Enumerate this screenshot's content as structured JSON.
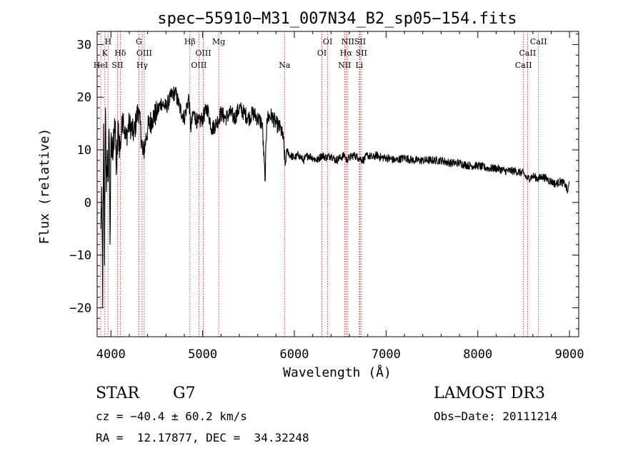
{
  "chart_data": {
    "type": "line",
    "title": "spec−55910−M31_007N34_B2_sp05−154.fits",
    "xlabel": "Wavelength (Å)",
    "ylabel": "Flux (relative)",
    "xlim": [
      3850,
      9100
    ],
    "ylim": [
      -25.5,
      32.5
    ],
    "xticks": [
      4000,
      5000,
      6000,
      7000,
      8000,
      9000
    ],
    "xtick_labels": [
      "4000",
      "5000",
      "6000",
      "7000",
      "8000",
      "9000"
    ],
    "yticks": [
      -20,
      -10,
      0,
      10,
      20,
      30
    ],
    "ytick_labels": [
      "−20",
      "−10",
      "0",
      "10",
      "20",
      "30"
    ],
    "x_minor_step": 200,
    "y_minor_step": 2,
    "line_color": "#000000",
    "marker_color": "#cc2222",
    "series": [
      {
        "name": "flux",
        "x": [
          3890,
          3900,
          3910,
          3920,
          3930,
          3940,
          3950,
          3960,
          3970,
          3980,
          3990,
          4000,
          4020,
          4040,
          4060,
          4080,
          4100,
          4130,
          4160,
          4200,
          4250,
          4300,
          4350,
          4380,
          4400,
          4450,
          4500,
          4550,
          4600,
          4650,
          4700,
          4750,
          4800,
          4850,
          4870,
          4900,
          4950,
          5000,
          5050,
          5100,
          5150,
          5200,
          5250,
          5300,
          5350,
          5400,
          5450,
          5500,
          5550,
          5600,
          5650,
          5680,
          5700,
          5750,
          5800,
          5850,
          5880,
          5900,
          5920,
          5950,
          6000,
          6050,
          6100,
          6150,
          6200,
          6250,
          6300,
          6350,
          6400,
          6450,
          6500,
          6550,
          6563,
          6600,
          6650,
          6700,
          6750,
          6800,
          6850,
          6900,
          6950,
          7000,
          7100,
          7200,
          7300,
          7400,
          7500,
          7600,
          7700,
          7800,
          7900,
          8000,
          8100,
          8200,
          8300,
          8400,
          8500,
          8540,
          8600,
          8662,
          8700,
          8750,
          8800,
          8850,
          8900,
          8950,
          8980,
          9000
        ],
        "y": [
          -5,
          3,
          -20,
          15,
          -12,
          18,
          2,
          10,
          4,
          14,
          -8,
          12,
          8,
          16,
          6,
          14,
          10,
          17,
          12,
          15,
          13,
          18,
          9,
          12,
          14,
          16,
          17,
          19,
          18,
          20,
          21,
          18,
          16,
          20,
          14,
          17,
          15,
          16,
          18,
          14,
          15,
          17,
          16,
          17,
          16,
          18,
          17,
          16,
          17,
          16,
          15,
          4,
          16,
          16.5,
          15,
          14,
          12,
          7,
          10,
          9,
          8.5,
          9,
          8,
          9,
          8.5,
          8,
          9,
          8.5,
          9,
          8,
          8.5,
          9,
          8,
          8.5,
          9,
          8.5,
          8,
          9,
          8.5,
          9,
          8.5,
          8.5,
          8,
          8.5,
          8,
          8,
          8,
          8,
          7.5,
          7.5,
          7,
          7,
          6.5,
          6.5,
          6,
          6,
          5.5,
          4.5,
          5,
          4.5,
          5,
          4.5,
          4,
          3.5,
          4,
          3.5,
          2,
          4
        ]
      }
    ],
    "line_markers": [
      {
        "x": 3889,
        "label": "HeI",
        "row": 3
      },
      {
        "x": 3934,
        "label": "K",
        "row": 2
      },
      {
        "x": 3969,
        "label": "H",
        "row": 1
      },
      {
        "x": 4072,
        "label": "SII",
        "row": 3
      },
      {
        "x": 4102,
        "label": "Hδ",
        "row": 2
      },
      {
        "x": 4305,
        "label": "G",
        "row": 1
      },
      {
        "x": 4340,
        "label": "Hγ",
        "row": 3
      },
      {
        "x": 4363,
        "label": "OIII",
        "row": 2
      },
      {
        "x": 4861,
        "label": "Hβ",
        "row": 1
      },
      {
        "x": 4959,
        "label": "OIII",
        "row": 3
      },
      {
        "x": 5007,
        "label": "OIII",
        "row": 2
      },
      {
        "x": 5175,
        "label": "Mg",
        "row": 1
      },
      {
        "x": 5893,
        "label": "Na",
        "row": 3
      },
      {
        "x": 6300,
        "label": "OI",
        "row": 2
      },
      {
        "x": 6363,
        "label": "OI",
        "row": 1
      },
      {
        "x": 6548,
        "label": "NII",
        "row": 3
      },
      {
        "x": 6563,
        "label": "Hα",
        "row": 2
      },
      {
        "x": 6583,
        "label": "NII",
        "row": 1
      },
      {
        "x": 6708,
        "label": "Li",
        "row": 3
      },
      {
        "x": 6716,
        "label": "SII",
        "row": 1
      },
      {
        "x": 6731,
        "label": "SII",
        "row": 2
      },
      {
        "x": 8498,
        "label": "CaII",
        "row": 3
      },
      {
        "x": 8542,
        "label": "CaII",
        "row": 2
      },
      {
        "x": 8662,
        "label": "CaII",
        "row": 1
      }
    ]
  },
  "info": {
    "class": "STAR",
    "subclass": "G7",
    "survey": "LAMOST DR3",
    "redshift": "cz = −40.4 ± 60.2 km/s",
    "obs_date": "Obs−Date: 20111214",
    "coords": "RA =  12.17877, DEC =  34.32248"
  }
}
